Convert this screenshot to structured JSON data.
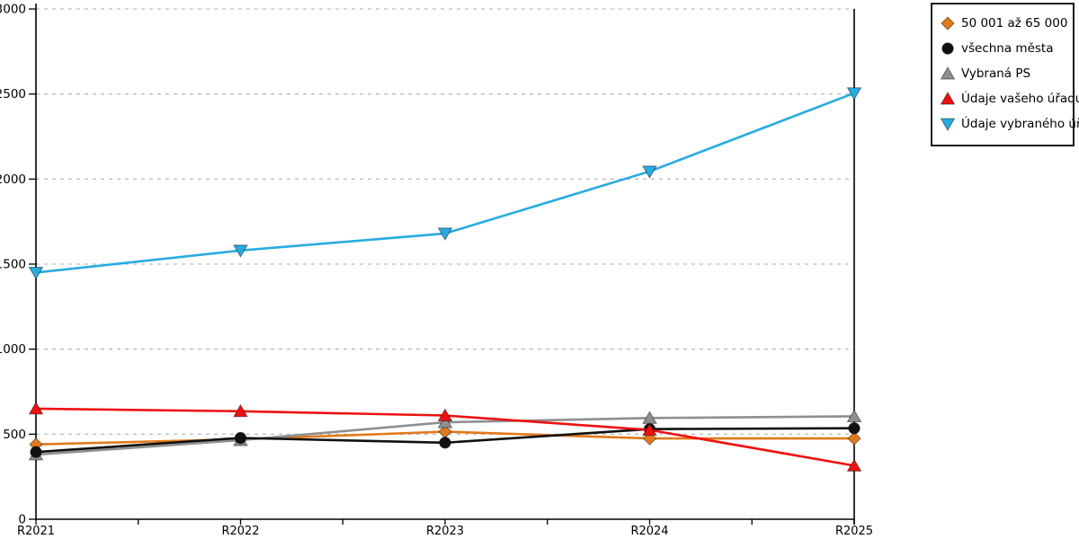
{
  "chart_data": {
    "type": "line",
    "title": "",
    "xlabel": "",
    "ylabel": "",
    "categories": [
      "R2021",
      "R2022",
      "R2023",
      "R2024",
      "R2025"
    ],
    "series": [
      {
        "name": "50 001 až 65 000",
        "marker": "diamond",
        "color": "#E2791A",
        "values": [
          440,
          470,
          515,
          475,
          475
        ]
      },
      {
        "name": "všechna města",
        "marker": "circle",
        "color": "#111111",
        "values": [
          395,
          478,
          450,
          530,
          535
        ]
      },
      {
        "name": "Vybraná PS",
        "marker": "triangle-up",
        "color": "#8F8F8F",
        "values": [
          380,
          465,
          570,
          595,
          605
        ]
      },
      {
        "name": "Údaje vašeho úřadu",
        "marker": "triangle-up",
        "color": "#EE1111",
        "values": [
          650,
          635,
          610,
          525,
          315
        ]
      },
      {
        "name": "Údaje vybraného úřadu",
        "marker": "triangle-down",
        "color": "#29ABE2",
        "values": [
          1450,
          1580,
          1680,
          2045,
          2505
        ]
      }
    ],
    "ylim": [
      0,
      3000
    ],
    "y_ticks": [
      0,
      500,
      1000,
      1500,
      2000,
      2500,
      3000
    ],
    "grid": "horizontal-dashed",
    "x_minor_ticks": true,
    "legend_position": "top-right"
  },
  "colors": {
    "background": "#FFFFFF",
    "axis": "#000000",
    "grid": "#BDBDBD",
    "tick_label": "#000000",
    "legend_border": "#1A1A1A"
  }
}
